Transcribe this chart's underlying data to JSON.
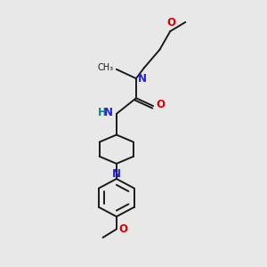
{
  "bg_color": "#e8e8e8",
  "bond_color": "#1a1a1a",
  "N_color": "#2020dd",
  "O_color": "#dd0000",
  "H_color": "#008888",
  "font_size": 8.5,
  "line_width": 1.4,
  "xlim": [
    0,
    10
  ],
  "ylim": [
    0,
    10
  ],
  "figsize": [
    3.0,
    3.0
  ],
  "dpi": 100
}
